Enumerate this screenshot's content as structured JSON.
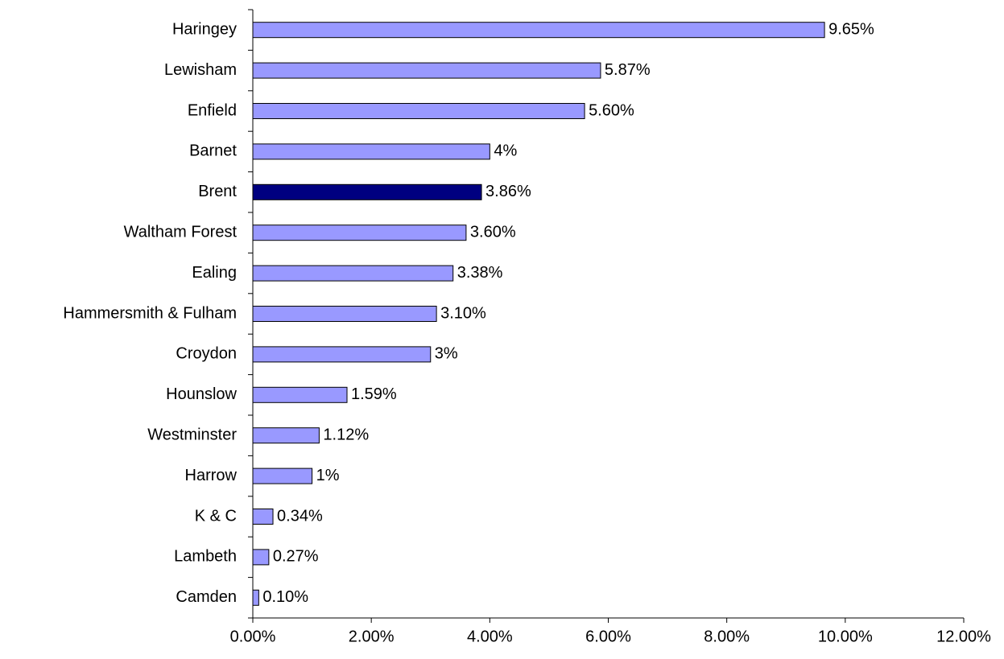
{
  "chart_data": {
    "type": "barh",
    "categories": [
      "Haringey",
      "Lewisham",
      "Enfield",
      "Barnet",
      "Brent",
      "Waltham Forest",
      "Ealing",
      "Hammersmith & Fulham",
      "Croydon",
      "Hounslow",
      "Westminster",
      "Harrow",
      "K & C",
      "Lambeth",
      "Camden"
    ],
    "values": [
      9.65,
      5.87,
      5.6,
      4,
      3.86,
      3.6,
      3.38,
      3.1,
      3,
      1.59,
      1.12,
      1,
      0.34,
      0.27,
      0.1
    ],
    "value_labels": [
      "9.65%",
      "5.87%",
      "5.60%",
      "4%",
      "3.86%",
      "3.60%",
      "3.38%",
      "3.10%",
      "3%",
      "1.59%",
      "1.12%",
      "1%",
      "0.34%",
      "0.27%",
      "0.10%"
    ],
    "colors": [
      "#9999ff",
      "#9999ff",
      "#9999ff",
      "#9999ff",
      "#000080",
      "#9999ff",
      "#9999ff",
      "#9999ff",
      "#9999ff",
      "#9999ff",
      "#9999ff",
      "#9999ff",
      "#9999ff",
      "#9999ff",
      "#9999ff"
    ],
    "xlim": [
      0,
      12
    ],
    "xticks": [
      {
        "value": 0,
        "label": "0.00%"
      },
      {
        "value": 2,
        "label": "2.00%"
      },
      {
        "value": 4,
        "label": "4.00%"
      },
      {
        "value": 6,
        "label": "6.00%"
      },
      {
        "value": 8,
        "label": "8.00%"
      },
      {
        "value": 10,
        "label": "10.00%"
      },
      {
        "value": 12,
        "label": "12.00%"
      }
    ],
    "grid": false
  }
}
